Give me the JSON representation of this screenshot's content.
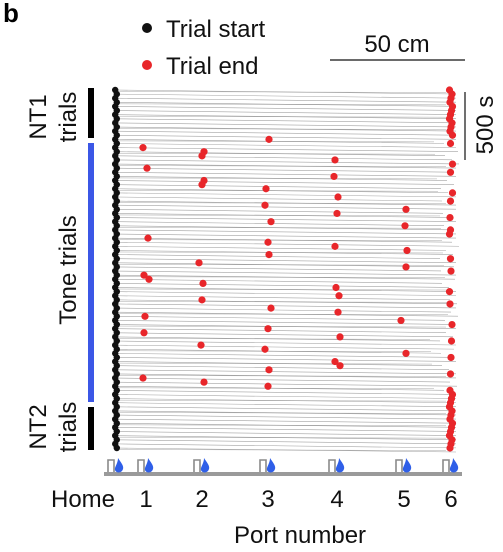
{
  "panel_label": "b",
  "legend": {
    "start_label": "Trial start",
    "end_label": "Trial end",
    "start_color": "#111111",
    "end_color": "#e8262a"
  },
  "scale_bars": {
    "distance": "50 cm",
    "time": "500 s"
  },
  "groups": {
    "nt1": {
      "line1": "NT1",
      "line2": "trials",
      "color": "#000000"
    },
    "tone": {
      "label": "Tone trials",
      "color": "#3b57e6"
    },
    "nt2": {
      "line1": "NT2",
      "line2": "trials",
      "color": "#000000"
    }
  },
  "icons": {
    "port_icon": "water-drop-icon",
    "port_icon_color": "#2f5fe8"
  },
  "chart_data": {
    "type": "scatter",
    "title": "",
    "xlabel": "Port number",
    "ylabel": "",
    "x_ticks": [
      "Home",
      "1",
      "2",
      "3",
      "4",
      "5",
      "6"
    ],
    "xlim": [
      "Home",
      "6"
    ],
    "y_axis": "trial index (top = first trial)",
    "n_trials": 88,
    "trial_groups": [
      {
        "name": "NT1 trials",
        "first_trial": 1,
        "last_trial": 12
      },
      {
        "name": "Tone trials",
        "first_trial": 13,
        "last_trial": 73
      },
      {
        "name": "NT2 trials",
        "first_trial": 74,
        "last_trial": 88
      }
    ],
    "trial_end_ports": [
      6,
      6,
      6,
      6,
      6,
      6,
      6,
      6,
      6,
      6,
      6,
      6,
      3,
      6,
      1,
      2,
      2,
      4,
      6,
      1,
      6,
      4,
      2,
      2,
      3,
      6,
      4,
      6,
      3,
      5,
      4,
      6,
      3,
      5,
      6,
      6,
      1,
      3,
      4,
      5,
      3,
      6,
      2,
      5,
      6,
      1,
      1,
      2,
      4,
      6,
      4,
      2,
      6,
      3,
      4,
      1,
      5,
      6,
      3,
      1,
      4,
      6,
      2,
      3,
      5,
      6,
      4,
      4,
      3,
      6,
      1,
      2,
      3,
      6,
      6,
      6,
      6,
      6,
      6,
      6,
      6,
      6,
      6,
      6,
      6,
      6,
      6,
      6
    ],
    "grid": false,
    "legend_position": "top-left"
  }
}
